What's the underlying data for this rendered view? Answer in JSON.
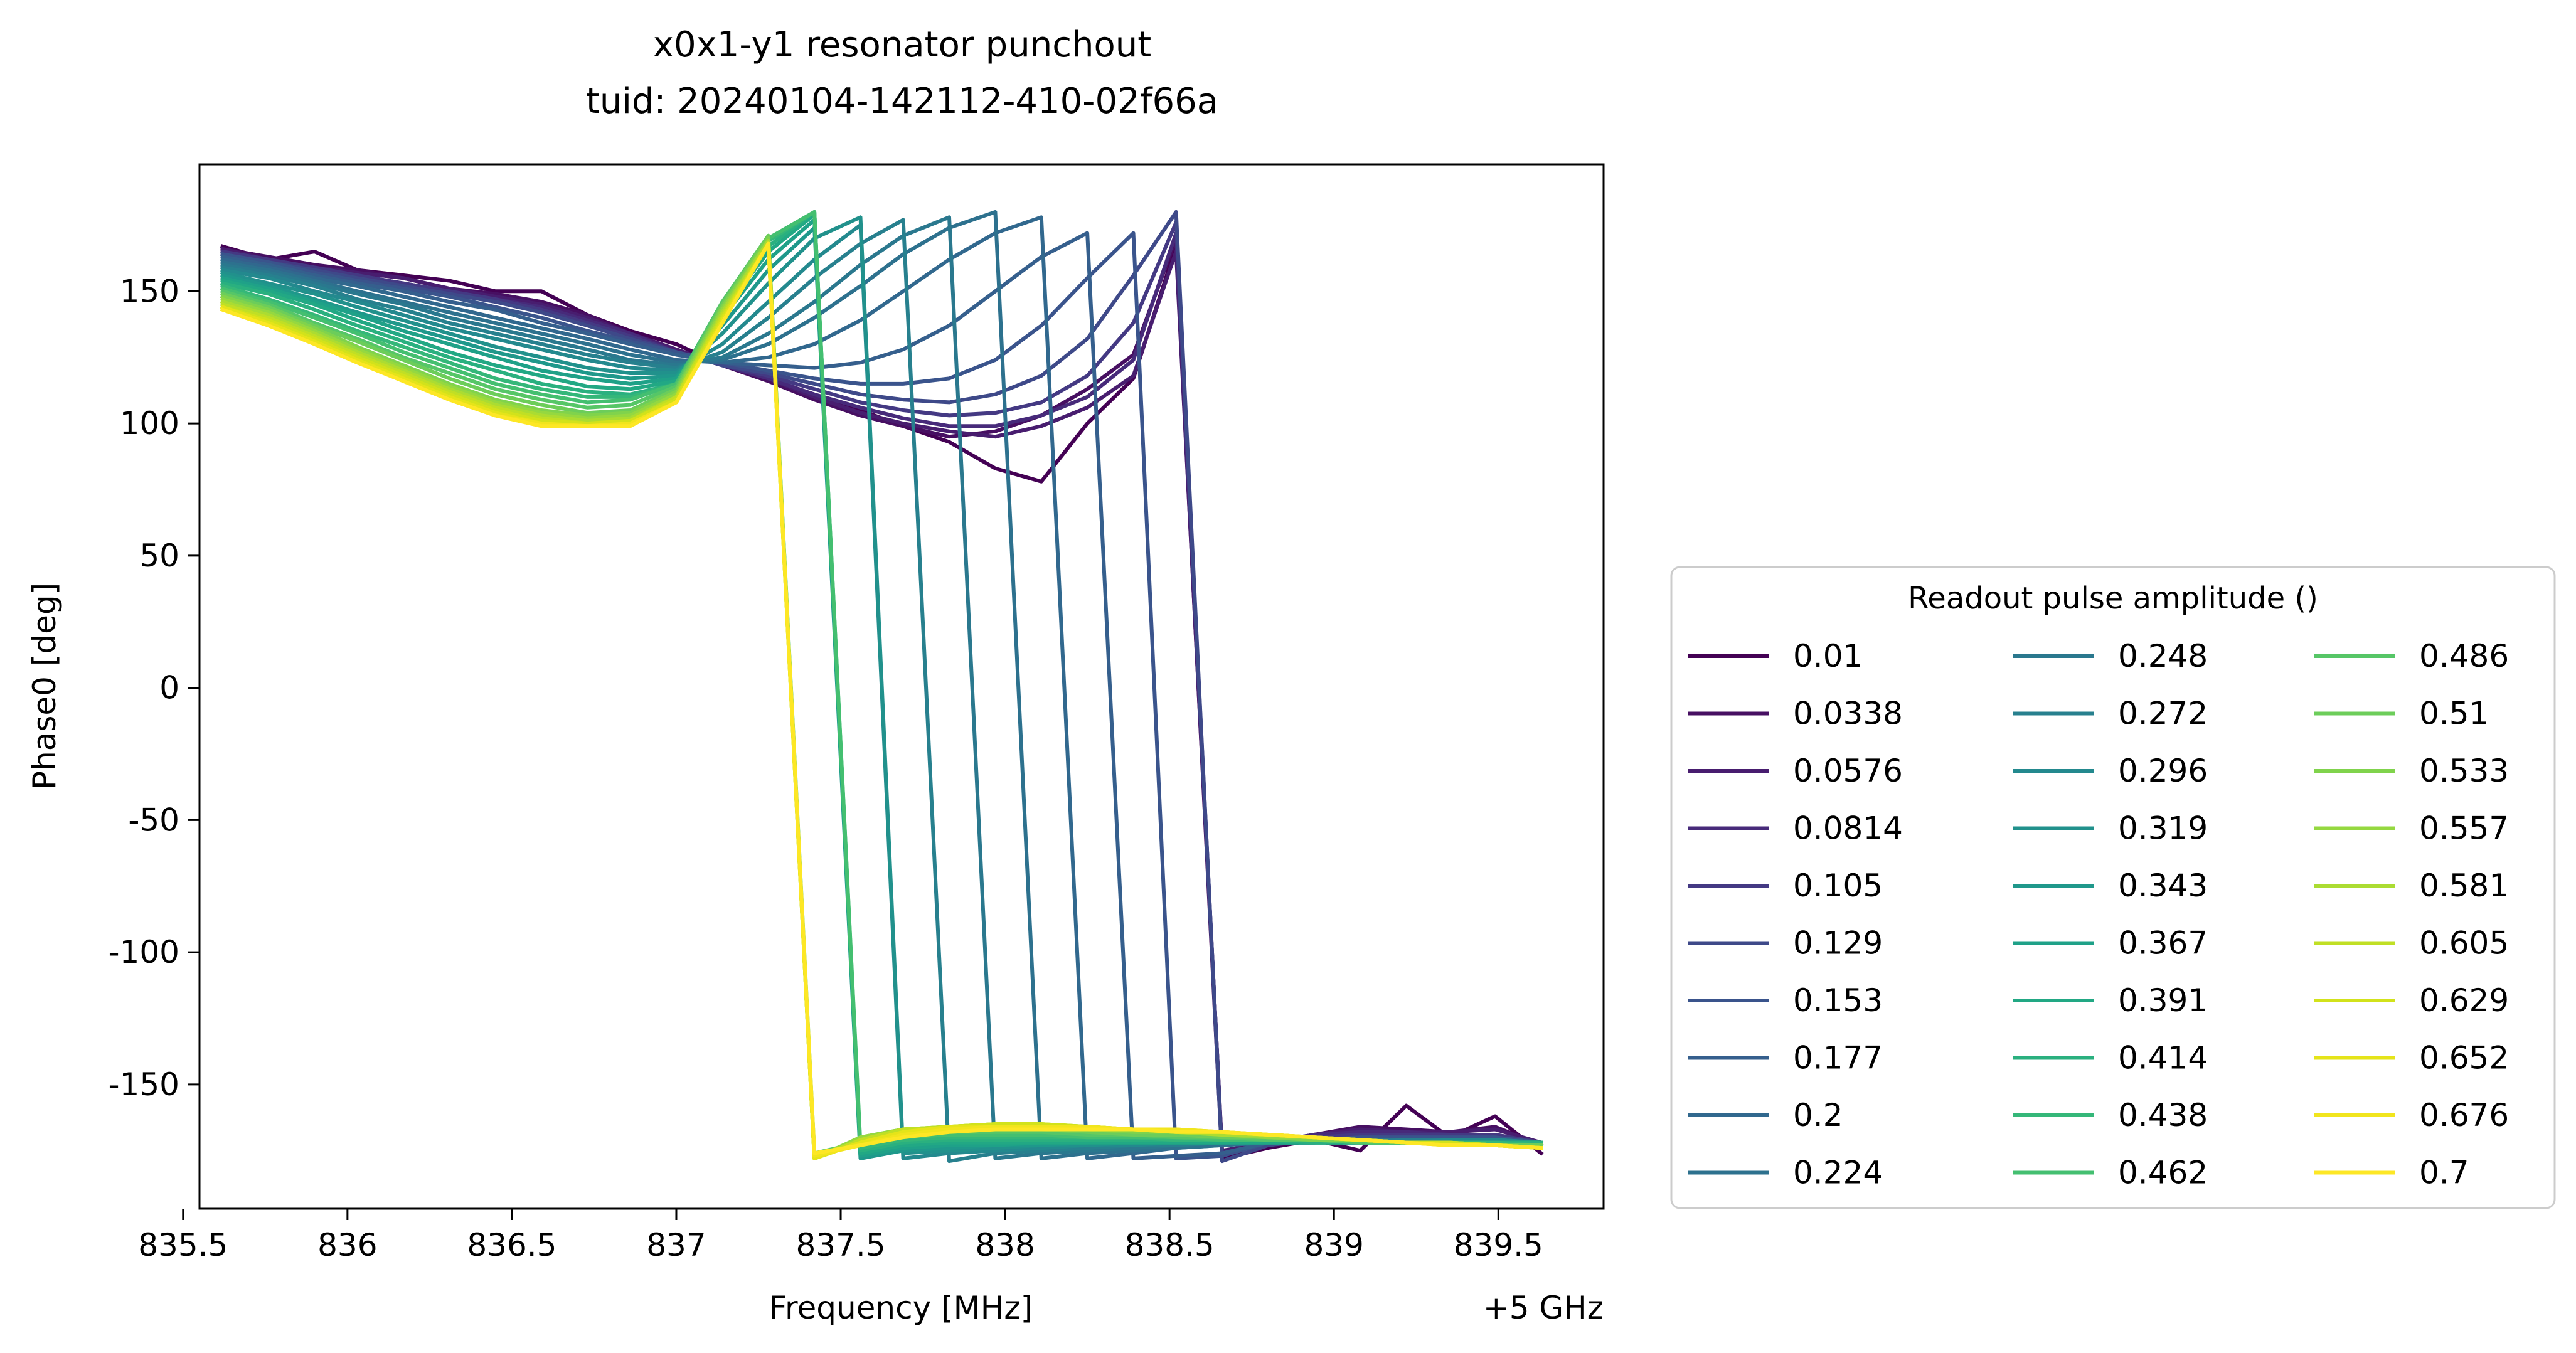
{
  "chart_data": {
    "type": "line",
    "title": "x0x1-y1 resonator punchout",
    "subtitle": "tuid: 20240104-142112-410-02f66a",
    "xlabel": "Frequency [MHz]",
    "x_offset_label": "+5 GHz",
    "ylabel": "Phase0 [deg]",
    "xlim": [
      835.55,
      839.82
    ],
    "ylim": [
      -197,
      198
    ],
    "x_ticks": [
      835.5,
      836,
      836.5,
      837,
      837.5,
      838,
      838.5,
      839,
      839.5
    ],
    "x_tick_labels": [
      "835.5",
      "836",
      "836.5",
      "837",
      "837.5",
      "838",
      "838.5",
      "839",
      "839.5"
    ],
    "y_ticks": [
      150,
      100,
      50,
      0,
      -50,
      -100,
      -150
    ],
    "y_tick_labels": [
      "150",
      "100",
      "50",
      "0",
      "-50",
      "-100",
      "-150"
    ],
    "grid": false,
    "legend_title": "Readout pulse amplitude ()",
    "legend_placement": "right",
    "legend_columns": 3,
    "x": [
      835.62,
      835.76,
      835.9,
      836.03,
      836.17,
      836.31,
      836.45,
      836.59,
      836.73,
      836.86,
      837.0,
      837.14,
      837.28,
      837.42,
      837.56,
      837.69,
      837.83,
      837.97,
      838.11,
      838.25,
      838.39,
      838.52,
      838.66,
      838.8,
      838.94,
      839.08,
      839.22,
      839.35,
      839.49,
      839.63
    ],
    "series": [
      {
        "name": "0.01",
        "color": "#440154",
        "values": [
          167,
          162,
          165,
          158,
          156,
          154,
          150,
          150,
          141,
          135,
          130,
          122,
          116,
          110,
          105,
          99,
          93,
          83,
          78,
          100,
          117,
          167,
          -178,
          -174,
          -171,
          -175,
          -158,
          -170,
          -162,
          -176
        ]
      },
      {
        "name": "0.0338",
        "color": "#470f62",
        "values": [
          166,
          163,
          160,
          158,
          155,
          151,
          149,
          146,
          141,
          134,
          128,
          122,
          116,
          109,
          103,
          99,
          95,
          97,
          103,
          113,
          126,
          170,
          -176,
          -172,
          -169,
          -166,
          -167,
          -168,
          -166,
          -173
        ]
      },
      {
        "name": "0.0576",
        "color": "#481d6f",
        "values": [
          166,
          162,
          159,
          157,
          155,
          151,
          148,
          145,
          140,
          134,
          128,
          122,
          117,
          110,
          104,
          100,
          97,
          95,
          99,
          106,
          118,
          165,
          -175,
          -172,
          -169,
          -167,
          -168,
          -168,
          -167,
          -172
        ]
      },
      {
        "name": "0.0814",
        "color": "#472a7a",
        "values": [
          165,
          162,
          159,
          156,
          153,
          150,
          147,
          144,
          139,
          134,
          127,
          122,
          117,
          111,
          106,
          102,
          99,
          99,
          103,
          110,
          124,
          172,
          -176,
          -172,
          -169,
          -168,
          -168,
          -169,
          -169,
          -172
        ]
      },
      {
        "name": "0.105",
        "color": "#443983",
        "values": [
          165,
          162,
          159,
          156,
          153,
          150,
          147,
          143,
          138,
          133,
          127,
          122,
          118,
          113,
          108,
          105,
          103,
          104,
          108,
          118,
          138,
          176,
          -177,
          -172,
          -170,
          -169,
          -169,
          -169,
          -169,
          -172
        ]
      },
      {
        "name": "0.129",
        "color": "#3e4989",
        "values": [
          164,
          161,
          158,
          155,
          152,
          149,
          146,
          142,
          137,
          132,
          127,
          122,
          119,
          115,
          111,
          109,
          108,
          111,
          118,
          132,
          156,
          180,
          -179,
          -173,
          -171,
          -170,
          -170,
          -170,
          -170,
          -172
        ]
      },
      {
        "name": "0.153",
        "color": "#3a548c",
        "values": [
          164,
          161,
          157,
          154,
          151,
          148,
          144,
          140,
          135,
          131,
          127,
          123,
          120,
          117,
          115,
          115,
          117,
          124,
          137,
          155,
          172,
          -178,
          -177,
          -172,
          -171,
          -170,
          -170,
          -170,
          -170,
          -172
        ]
      },
      {
        "name": "0.177",
        "color": "#355f8d",
        "values": [
          163,
          160,
          156,
          153,
          150,
          146,
          143,
          138,
          134,
          130,
          126,
          123,
          122,
          121,
          123,
          128,
          137,
          150,
          163,
          172,
          -178,
          -177,
          -176,
          -172,
          -171,
          -171,
          -171,
          -171,
          -171,
          -172
        ]
      },
      {
        "name": "0.2",
        "color": "#31688e",
        "values": [
          162,
          159,
          155,
          152,
          148,
          144,
          140,
          136,
          132,
          128,
          124,
          123,
          125,
          130,
          139,
          150,
          162,
          172,
          178,
          -178,
          -176,
          -174,
          -173,
          -172,
          -171,
          -171,
          -171,
          -171,
          -171,
          -172
        ]
      },
      {
        "name": "0.224",
        "color": "#2d718e",
        "values": [
          161,
          158,
          154,
          150,
          146,
          142,
          138,
          134,
          130,
          126,
          123,
          124,
          130,
          140,
          152,
          164,
          174,
          180,
          -178,
          -176,
          -175,
          -174,
          -173,
          -172,
          -172,
          -171,
          -171,
          -171,
          -171,
          -172
        ]
      },
      {
        "name": "0.248",
        "color": "#2a788e",
        "values": [
          160,
          157,
          153,
          149,
          145,
          140,
          136,
          132,
          128,
          124,
          122,
          125,
          134,
          146,
          160,
          171,
          178,
          -178,
          -176,
          -175,
          -174,
          -173,
          -172,
          -172,
          -172,
          -171,
          -171,
          -171,
          -171,
          -172
        ]
      },
      {
        "name": "0.272",
        "color": "#27808e",
        "values": [
          159,
          156,
          152,
          147,
          143,
          138,
          134,
          130,
          126,
          123,
          121,
          127,
          140,
          155,
          168,
          177,
          -179,
          -176,
          -175,
          -174,
          -173,
          -173,
          -172,
          -172,
          -172,
          -172,
          -171,
          -171,
          -171,
          -172
        ]
      },
      {
        "name": "0.296",
        "color": "#23898e",
        "values": [
          158,
          155,
          150,
          146,
          141,
          136,
          132,
          128,
          124,
          121,
          120,
          130,
          146,
          162,
          175,
          -178,
          -176,
          -175,
          -174,
          -173,
          -173,
          -172,
          -172,
          -172,
          -172,
          -172,
          -172,
          -171,
          -171,
          -172
        ]
      },
      {
        "name": "0.319",
        "color": "#21918c",
        "values": [
          157,
          153,
          149,
          144,
          139,
          134,
          129,
          125,
          121,
          119,
          119,
          134,
          153,
          170,
          178,
          -176,
          -175,
          -174,
          -173,
          -173,
          -172,
          -172,
          -172,
          -172,
          -172,
          -172,
          -172,
          -172,
          -172,
          -172
        ]
      },
      {
        "name": "0.343",
        "color": "#1f988b",
        "values": [
          156,
          152,
          147,
          142,
          137,
          132,
          127,
          123,
          119,
          117,
          118,
          137,
          158,
          174,
          -178,
          -175,
          -174,
          -173,
          -173,
          -172,
          -172,
          -172,
          -172,
          -172,
          -172,
          -172,
          -172,
          -172,
          -172,
          -172
        ]
      },
      {
        "name": "0.367",
        "color": "#1fa188",
        "values": [
          155,
          151,
          146,
          141,
          135,
          130,
          125,
          120,
          117,
          115,
          117,
          140,
          162,
          177,
          -177,
          -174,
          -173,
          -173,
          -172,
          -172,
          -172,
          -172,
          -172,
          -172,
          -172,
          -172,
          -172,
          -172,
          -172,
          -172
        ]
      },
      {
        "name": "0.391",
        "color": "#22a884",
        "values": [
          154,
          150,
          145,
          139,
          133,
          127,
          122,
          118,
          114,
          113,
          116,
          142,
          165,
          179,
          -176,
          -173,
          -172,
          -172,
          -172,
          -172,
          -172,
          -172,
          -172,
          -172,
          -172,
          -172,
          -172,
          -172,
          -172,
          -172
        ]
      },
      {
        "name": "0.414",
        "color": "#2ab07f",
        "values": [
          153,
          149,
          143,
          137,
          131,
          125,
          120,
          115,
          112,
          111,
          115,
          144,
          167,
          180,
          -175,
          -172,
          -171,
          -171,
          -171,
          -171,
          -171,
          -171,
          -171,
          -171,
          -172,
          -172,
          -172,
          -172,
          -172,
          -172
        ]
      },
      {
        "name": "0.438",
        "color": "#35b779",
        "values": [
          152,
          147,
          141,
          135,
          129,
          123,
          117,
          113,
          110,
          110,
          115,
          145,
          169,
          180,
          -174,
          -171,
          -170,
          -170,
          -170,
          -170,
          -170,
          -171,
          -171,
          -171,
          -171,
          -172,
          -172,
          -172,
          -172,
          -173
        ]
      },
      {
        "name": "0.462",
        "color": "#44bf70",
        "values": [
          151,
          146,
          140,
          134,
          127,
          121,
          115,
          111,
          108,
          109,
          115,
          146,
          170,
          180,
          -173,
          -170,
          -169,
          -169,
          -169,
          -170,
          -170,
          -170,
          -171,
          -171,
          -171,
          -172,
          -172,
          -172,
          -173,
          -173
        ]
      },
      {
        "name": "0.486",
        "color": "#56c667",
        "values": [
          150,
          145,
          138,
          132,
          125,
          119,
          113,
          109,
          106,
          107,
          114,
          146,
          171,
          -176,
          -172,
          -169,
          -168,
          -168,
          -168,
          -169,
          -169,
          -170,
          -170,
          -171,
          -171,
          -172,
          -172,
          -172,
          -173,
          -173
        ]
      },
      {
        "name": "0.51",
        "color": "#6ccd5a",
        "values": [
          149,
          144,
          137,
          131,
          124,
          117,
          111,
          107,
          104,
          105,
          113,
          145,
          171,
          -178,
          -171,
          -168,
          -167,
          -167,
          -167,
          -168,
          -169,
          -169,
          -170,
          -170,
          -171,
          -171,
          -172,
          -172,
          -173,
          -173
        ]
      },
      {
        "name": "0.533",
        "color": "#80d34c",
        "values": [
          148,
          143,
          136,
          129,
          122,
          115,
          109,
          105,
          103,
          104,
          112,
          144,
          170,
          -178,
          -170,
          -167,
          -166,
          -166,
          -166,
          -167,
          -168,
          -168,
          -169,
          -170,
          -171,
          -171,
          -172,
          -172,
          -173,
          -174
        ]
      },
      {
        "name": "0.557",
        "color": "#95d840",
        "values": [
          147,
          142,
          135,
          128,
          121,
          114,
          108,
          104,
          102,
          103,
          111,
          143,
          169,
          -178,
          -170,
          -167,
          -166,
          -165,
          -166,
          -166,
          -167,
          -168,
          -169,
          -170,
          -170,
          -171,
          -172,
          -172,
          -173,
          -174
        ]
      },
      {
        "name": "0.581",
        "color": "#abdc32",
        "values": [
          146,
          141,
          134,
          127,
          120,
          113,
          107,
          103,
          101,
          102,
          110,
          142,
          169,
          -178,
          -171,
          -167,
          -166,
          -165,
          -165,
          -166,
          -167,
          -168,
          -169,
          -169,
          -170,
          -171,
          -172,
          -172,
          -173,
          -174
        ]
      },
      {
        "name": "0.605",
        "color": "#c0df25",
        "values": [
          145,
          140,
          133,
          126,
          119,
          112,
          106,
          102,
          100,
          101,
          110,
          141,
          168,
          -178,
          -171,
          -167,
          -166,
          -165,
          -165,
          -166,
          -167,
          -168,
          -168,
          -169,
          -170,
          -171,
          -172,
          -172,
          -173,
          -174
        ]
      },
      {
        "name": "0.629",
        "color": "#d2e21b",
        "values": [
          144,
          139,
          132,
          125,
          118,
          111,
          105,
          101,
          100,
          101,
          109,
          140,
          168,
          -178,
          -172,
          -168,
          -166,
          -165,
          -165,
          -166,
          -167,
          -167,
          -168,
          -169,
          -170,
          -171,
          -172,
          -172,
          -173,
          -174
        ]
      },
      {
        "name": "0.652",
        "color": "#e5e419",
        "values": [
          144,
          138,
          131,
          124,
          117,
          110,
          104,
          100,
          99,
          100,
          108,
          139,
          168,
          -178,
          -172,
          -168,
          -166,
          -166,
          -166,
          -166,
          -167,
          -167,
          -168,
          -169,
          -170,
          -171,
          -172,
          -173,
          -173,
          -174
        ]
      },
      {
        "name": "0.676",
        "color": "#f1e51d",
        "values": [
          143,
          137,
          130,
          123,
          116,
          109,
          103,
          100,
          99,
          100,
          108,
          138,
          168,
          -177,
          -173,
          -169,
          -167,
          -166,
          -166,
          -166,
          -167,
          -167,
          -168,
          -169,
          -170,
          -171,
          -172,
          -173,
          -173,
          -174
        ]
      },
      {
        "name": "0.7",
        "color": "#fde725",
        "values": [
          143,
          137,
          130,
          123,
          116,
          109,
          103,
          99,
          99,
          99,
          108,
          138,
          168,
          -176,
          -173,
          -170,
          -168,
          -167,
          -167,
          -167,
          -167,
          -168,
          -168,
          -169,
          -170,
          -171,
          -172,
          -173,
          -173,
          -174
        ]
      }
    ]
  }
}
